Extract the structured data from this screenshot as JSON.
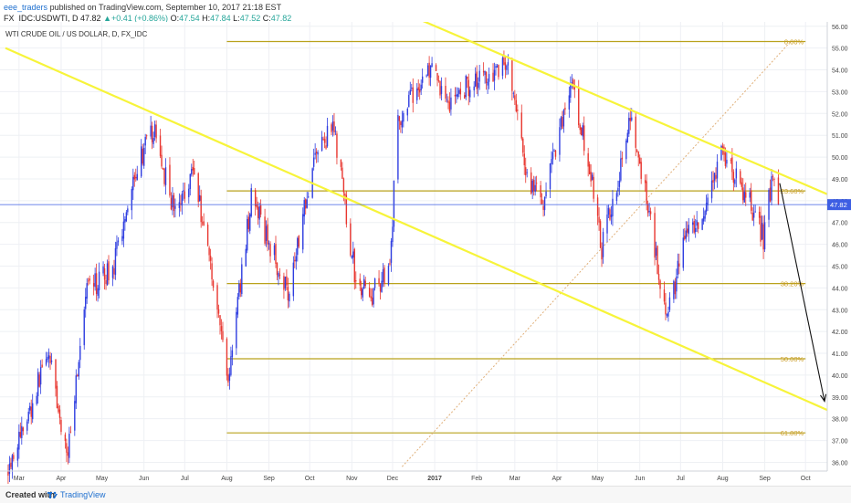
{
  "header": {
    "user": "eee_traders",
    "published": "published on TradingView.com, September 10, 2017 21:18 EST",
    "symbol": "FX_IDC:USDWTI, D",
    "price": "47.82",
    "change": "+0.41 (+0.86%)",
    "open_label": "O:",
    "open": "47.54",
    "high_label": "H:",
    "high": "47.84",
    "low_label": "L:",
    "low": "47.52",
    "close_label": "C:",
    "close": "47.82"
  },
  "footer": {
    "created": "Created with",
    "brand": "TradingView"
  },
  "chart_data": {
    "type": "candlestick",
    "title": "WTI CRUDE OIL / US DOLLAR, D, FX_IDC",
    "ylim": [
      35.6,
      56.2
    ],
    "y_ticks": [
      "36.00",
      "37.00",
      "38.00",
      "39.00",
      "40.00",
      "41.00",
      "42.00",
      "43.00",
      "44.00",
      "45.00",
      "46.00",
      "47.00",
      "48.00",
      "49.00",
      "50.00",
      "51.00",
      "52.00",
      "53.00",
      "54.00",
      "55.00",
      "56.00"
    ],
    "x_ticks": [
      {
        "label": "Mar",
        "date": "2016-03-01"
      },
      {
        "label": "Apr",
        "date": "2016-04-01"
      },
      {
        "label": "May",
        "date": "2016-05-01"
      },
      {
        "label": "Jun",
        "date": "2016-06-01"
      },
      {
        "label": "Jul",
        "date": "2016-07-01"
      },
      {
        "label": "Aug",
        "date": "2016-08-01"
      },
      {
        "label": "Sep",
        "date": "2016-09-01"
      },
      {
        "label": "Oct",
        "date": "2016-10-01"
      },
      {
        "label": "Nov",
        "date": "2016-11-01"
      },
      {
        "label": "Dec",
        "date": "2016-12-01"
      },
      {
        "label": "2017",
        "date": "2017-01-01"
      },
      {
        "label": "Feb",
        "date": "2017-02-01"
      },
      {
        "label": "Mar",
        "date": "2017-03-01"
      },
      {
        "label": "Apr",
        "date": "2017-04-01"
      },
      {
        "label": "May",
        "date": "2017-05-01"
      },
      {
        "label": "Jun",
        "date": "2017-06-01"
      },
      {
        "label": "Jul",
        "date": "2017-07-01"
      },
      {
        "label": "Aug",
        "date": "2017-08-01"
      },
      {
        "label": "Sep",
        "date": "2017-09-01"
      },
      {
        "label": "Oct",
        "date": "2017-10-01"
      }
    ],
    "last_price": 47.82,
    "last_price_label": "47.82",
    "price_path": [
      {
        "date": "2016-02-22",
        "price": 35.9
      },
      {
        "date": "2016-03-10",
        "price": 38.5
      },
      {
        "date": "2016-03-22",
        "price": 41.2
      },
      {
        "date": "2016-04-05",
        "price": 36.2
      },
      {
        "date": "2016-04-20",
        "price": 43.8
      },
      {
        "date": "2016-05-10",
        "price": 45.0
      },
      {
        "date": "2016-05-25",
        "price": 49.4
      },
      {
        "date": "2016-06-08",
        "price": 51.2
      },
      {
        "date": "2016-06-24",
        "price": 47.4
      },
      {
        "date": "2016-07-07",
        "price": 49.5
      },
      {
        "date": "2016-07-20",
        "price": 45.2
      },
      {
        "date": "2016-08-02",
        "price": 39.8
      },
      {
        "date": "2016-08-19",
        "price": 48.2
      },
      {
        "date": "2016-08-31",
        "price": 46.2
      },
      {
        "date": "2016-09-15",
        "price": 43.9
      },
      {
        "date": "2016-10-05",
        "price": 50.2
      },
      {
        "date": "2016-10-19",
        "price": 51.3
      },
      {
        "date": "2016-11-03",
        "price": 44.7
      },
      {
        "date": "2016-11-14",
        "price": 43.5
      },
      {
        "date": "2016-11-29",
        "price": 45.1
      },
      {
        "date": "2016-12-05",
        "price": 51.7
      },
      {
        "date": "2016-12-28",
        "price": 54.0
      },
      {
        "date": "2017-01-12",
        "price": 52.5
      },
      {
        "date": "2017-01-27",
        "price": 53.4
      },
      {
        "date": "2017-02-10",
        "price": 53.9
      },
      {
        "date": "2017-02-24",
        "price": 54.3
      },
      {
        "date": "2017-03-09",
        "price": 49.3
      },
      {
        "date": "2017-03-21",
        "price": 47.8
      },
      {
        "date": "2017-04-11",
        "price": 53.4
      },
      {
        "date": "2017-04-25",
        "price": 49.6
      },
      {
        "date": "2017-05-04",
        "price": 45.8
      },
      {
        "date": "2017-05-25",
        "price": 51.6
      },
      {
        "date": "2017-06-06",
        "price": 48.2
      },
      {
        "date": "2017-06-21",
        "price": 42.5
      },
      {
        "date": "2017-07-04",
        "price": 46.3
      },
      {
        "date": "2017-07-17",
        "price": 46.7
      },
      {
        "date": "2017-07-31",
        "price": 50.2
      },
      {
        "date": "2017-08-11",
        "price": 49.0
      },
      {
        "date": "2017-08-24",
        "price": 47.5
      },
      {
        "date": "2017-08-31",
        "price": 46.3
      },
      {
        "date": "2017-09-07",
        "price": 49.2
      },
      {
        "date": "2017-09-11",
        "price": 47.82
      }
    ],
    "fib_levels": [
      {
        "label": "0.00%",
        "price": 55.3
      },
      {
        "label": "23.60%",
        "price": 48.45
      },
      {
        "label": "38.20%",
        "price": 44.2
      },
      {
        "label": "50.00%",
        "price": 40.75
      },
      {
        "label": "61.80%",
        "price": 37.35
      }
    ],
    "fib_span": {
      "start": "2016-08-01",
      "end": "2017-10-01"
    },
    "trend_lines": [
      {
        "name": "upper-channel",
        "points": [
          {
            "date": "2016-12-10",
            "price": 56.6
          },
          {
            "date": "2017-10-17",
            "price": 48.3
          }
        ]
      },
      {
        "name": "lower-channel",
        "points": [
          {
            "date": "2016-02-20",
            "price": 55.0
          },
          {
            "date": "2017-10-17",
            "price": 38.4
          }
        ]
      }
    ],
    "fib_diagonal": {
      "points": [
        {
          "date": "2016-12-08",
          "price": 35.8
        },
        {
          "date": "2017-09-20",
          "price": 55.3
        }
      ]
    },
    "projection_arrow": {
      "points": [
        {
          "date": "2017-09-12",
          "price": 48.8
        },
        {
          "date": "2017-10-15",
          "price": 38.8
        }
      ]
    },
    "colors": {
      "up": "#2f3ee0",
      "down": "#e8362f",
      "channel": "#f7f43a",
      "fib": "#b9a21c",
      "fib_text": "#c99a22",
      "diagonal": "#e0b07a",
      "price_line": "#3d5ee3",
      "arrow": "#111111",
      "grid": "#eef0f4"
    }
  }
}
